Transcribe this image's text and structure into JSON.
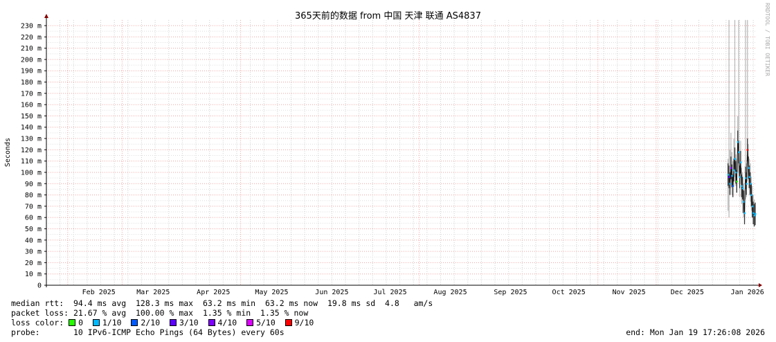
{
  "chart_data": {
    "type": "line",
    "title": "365天前的数据 from 中国 天津 联通 AS4837",
    "ylabel": "Seconds",
    "ylim": [
      0,
      235
    ],
    "yticks": [
      0,
      10,
      20,
      30,
      40,
      50,
      60,
      70,
      80,
      90,
      100,
      110,
      120,
      130,
      140,
      150,
      160,
      170,
      180,
      190,
      200,
      210,
      220,
      230
    ],
    "ytick_labels": [
      "0",
      "10 m",
      "20 m",
      "30 m",
      "40 m",
      "50 m",
      "60 m",
      "70 m",
      "80 m",
      "90 m",
      "100 m",
      "110 m",
      "120 m",
      "130 m",
      "140 m",
      "150 m",
      "160 m",
      "170 m",
      "180 m",
      "190 m",
      "200 m",
      "210 m",
      "220 m",
      "230 m"
    ],
    "xlim": [
      "2025-01-19",
      "2026-01-19"
    ],
    "xtick_labels": [
      {
        "label": "Feb 2025",
        "date": "2025-02-15"
      },
      {
        "label": "Mar 2025",
        "date": "2025-03-15"
      },
      {
        "label": "Apr 2025",
        "date": "2025-04-15"
      },
      {
        "label": "May 2025",
        "date": "2025-05-15"
      },
      {
        "label": "Jun 2025",
        "date": "2025-06-15"
      },
      {
        "label": "Jul 2025",
        "date": "2025-07-15"
      },
      {
        "label": "Aug 2025",
        "date": "2025-08-15"
      },
      {
        "label": "Sep 2025",
        "date": "2025-09-15"
      },
      {
        "label": "Oct 2025",
        "date": "2025-10-15"
      },
      {
        "label": "Nov 2025",
        "date": "2025-11-15"
      },
      {
        "label": "Dec 2025",
        "date": "2025-12-15"
      },
      {
        "label": "Jan 2026",
        "date": "2026-01-15"
      }
    ],
    "major_grid_dates": [
      "2025-01-30",
      "2025-02-27",
      "2025-04-29",
      "2025-07-30",
      "2025-10-30",
      "2025-11-29"
    ],
    "grid": true,
    "series": {
      "dates": [
        "2026-01-05",
        "2026-01-05T12",
        "2026-01-06",
        "2026-01-06T12",
        "2026-01-07",
        "2026-01-07T12",
        "2026-01-08",
        "2026-01-08T12",
        "2026-01-09",
        "2026-01-09T12",
        "2026-01-10",
        "2026-01-10T12",
        "2026-01-11",
        "2026-01-11T12",
        "2026-01-12",
        "2026-01-12T12",
        "2026-01-13",
        "2026-01-13T12",
        "2026-01-14",
        "2026-01-14T12",
        "2026-01-15",
        "2026-01-15T12",
        "2026-01-16",
        "2026-01-16T12",
        "2026-01-17",
        "2026-01-17T12",
        "2026-01-18",
        "2026-01-18T12",
        "2026-01-19"
      ],
      "median": [
        98,
        96,
        90,
        104,
        97,
        88,
        102,
        112,
        100,
        92,
        127,
        118,
        96,
        109,
        88,
        86,
        74,
        64,
        95,
        90,
        120,
        104,
        96,
        90,
        80,
        70,
        64,
        62,
        63.2
      ],
      "min": [
        66,
        60,
        82,
        86,
        80,
        80,
        88,
        96,
        88,
        82,
        100,
        96,
        78,
        90,
        72,
        64,
        60,
        58,
        76,
        78,
        92,
        86,
        80,
        74,
        66,
        62,
        58,
        58,
        60
      ],
      "max": [
        112,
        235,
        120,
        135,
        118,
        110,
        130,
        235,
        116,
        112,
        150,
        235,
        118,
        128,
        104,
        100,
        90,
        84,
        235,
        108,
        235,
        125,
        112,
        108,
        96,
        88,
        80,
        76,
        70
      ],
      "loss": [
        "1/10",
        "3/10",
        "1/10",
        "4/10",
        "1/10",
        "2/10",
        "1/10",
        "1/10",
        "1/10",
        "0",
        "1/10",
        "1/10",
        "1/10",
        "1/10",
        "1/10",
        "1/10",
        "1/10",
        "1/10",
        "1/10",
        "1/10",
        "9/10",
        "1/10",
        "1/10",
        "1/10",
        "1/10",
        "1/10",
        "1/10",
        "1/10",
        "1/10"
      ]
    }
  },
  "legend": {
    "median_rtt": "median rtt:  94.4 ms avg  128.3 ms max  63.2 ms min  63.2 ms now  19.8 ms sd  4.8   am/s",
    "packet_loss": "packet loss: 21.67 % avg  100.00 % max  1.35 % min  1.35 % now",
    "loss_color_label": "loss color: ",
    "loss_colors": [
      {
        "label": "0",
        "color": "#26ff00"
      },
      {
        "label": "1/10",
        "color": "#00b8ff"
      },
      {
        "label": "2/10",
        "color": "#0059ff"
      },
      {
        "label": "3/10",
        "color": "#5e00ff"
      },
      {
        "label": "4/10",
        "color": "#7e00ff"
      },
      {
        "label": "5/10",
        "color": "#dd00ff"
      },
      {
        "label": "9/10",
        "color": "#ff0000"
      }
    ],
    "probe": "probe:       10 IPv6-ICMP Echo Pings (64 Bytes) every 60s",
    "end": "end: Mon Jan 19 17:26:08 2026"
  },
  "watermark": "RRDTOOL / TOBI OETIKER"
}
